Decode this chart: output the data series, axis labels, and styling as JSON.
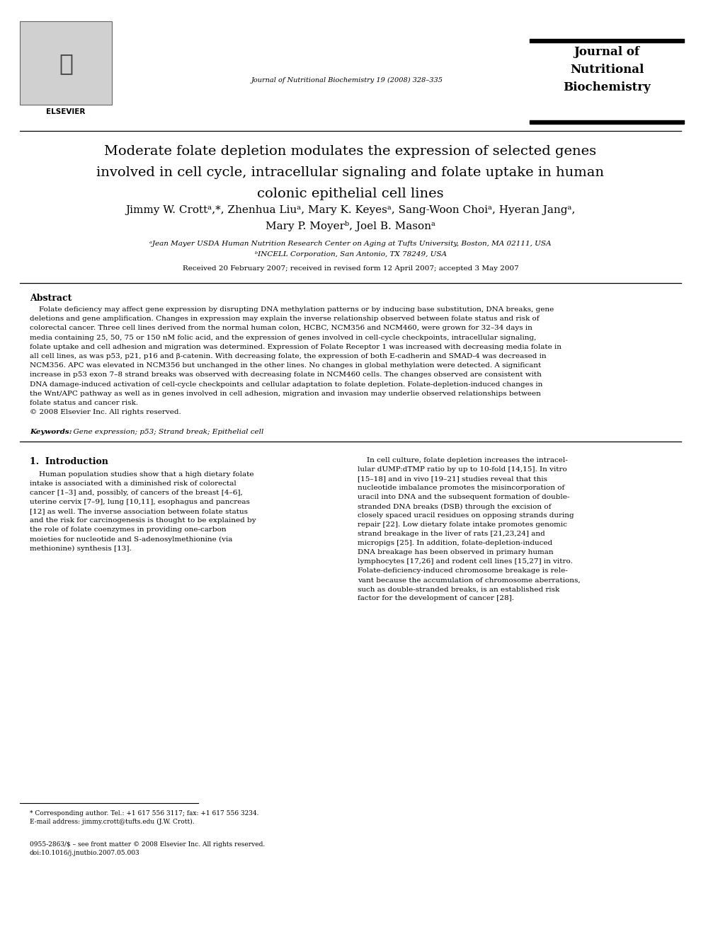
{
  "bg_color": "#ffffff",
  "journal_name": "Journal of Nutritional Biochemistry 19 (2008) 328–335",
  "journal_box_title_line1": "Journal of",
  "journal_box_title_line2": "Nutritional",
  "journal_box_title_line3": "Biochemistry",
  "article_title_line1": "Moderate folate depletion modulates the expression of selected genes",
  "article_title_line2": "involved in cell cycle, intracellular signaling and folate uptake in human",
  "article_title_line3": "colonic epithelial cell lines",
  "authors_line1": "Jimmy W. Crottᵃ,*, Zhenhua Liuᵃ, Mary K. Keyesᵃ, Sang-Woon Choiᵃ, Hyeran Jangᵃ,",
  "authors_line2": "Mary P. Moyerᵇ, Joel B. Masonᵃ",
  "affil_a": "ᵃJean Mayer USDA Human Nutrition Research Center on Aging at Tufts University, Boston, MA 02111, USA",
  "affil_b": "ᵇINCELL Corporation, San Antonio, TX 78249, USA",
  "received": "Received 20 February 2007; received in revised form 12 April 2007; accepted 3 May 2007",
  "abstract_header": "Abstract",
  "abstract_body": "Folate deficiency may affect gene expression by disrupting DNA methylation patterns or by inducing base substitution, DNA breaks, gene\ndeletions and gene amplification. Changes in expression may explain the inverse relationship observed between folate status and risk of\ncolorectal cancer. Three cell lines derived from the normal human colon, HCBC, NCM356 and NCM460, were grown for 32–34 days in\nmedia containing 25, 50, 75 or 150 nM folic acid, and the expression of genes involved in cell-cycle checkpoints, intracellular signaling,\nfolate uptake and cell adhesion and migration was determined. Expression of Folate Receptor 1 was increased with decreasing media folate in\nall cell lines, as was p53, p21, p16 and β-catenin. With decreasing folate, the expression of both E-cadherin and SMAD-4 was decreased in\nNCM356. APC was elevated in NCM356 but unchanged in the other lines. No changes in global methylation were detected. A significant\nincrease in p53 exon 7–8 strand breaks was observed with decreasing folate in NCM460 cells. The changes observed are consistent with\nDNA damage-induced activation of cell-cycle checkpoints and cellular adaptation to folate depletion. Folate-depletion-induced changes in\nthe Wnt/APC pathway as well as in genes involved in cell adhesion, migration and invasion may underlie observed relationships between\nfolate status and cancer risk.\n© 2008 Elsevier Inc. All rights reserved.",
  "keywords_label": "Keywords:",
  "keywords_text": "  Gene expression; p53; Strand break; Epithelial cell",
  "intro_header": "1.  Introduction",
  "intro_left_lines": [
    "    Human population studies show that a high dietary folate",
    "intake is associated with a diminished risk of colorectal",
    "cancer [1–3] and, possibly, of cancers of the breast [4–6],",
    "uterine cervix [7–9], lung [10,11], esophagus and pancreas",
    "[12] as well. The inverse association between folate status",
    "and the risk for carcinogenesis is thought to be explained by",
    "the role of folate coenzymes in providing one-carbon",
    "moieties for nucleotide and S-adenosylmethionine (via",
    "methionine) synthesis [13]."
  ],
  "intro_right_lines": [
    "    In cell culture, folate depletion increases the intracel-",
    "lular dUMP:dTMP ratio by up to 10-fold [14,15]. In vitro",
    "[15–18] and in vivo [19–21] studies reveal that this",
    "nucleotide imbalance promotes the misincorporation of",
    "uracil into DNA and the subsequent formation of double-",
    "stranded DNA breaks (DSB) through the excision of",
    "closely spaced uracil residues on opposing strands during",
    "repair [22]. Low dietary folate intake promotes genomic",
    "strand breakage in the liver of rats [21,23,24] and",
    "micropigs [25]. In addition, folate-depletion-induced",
    "DNA breakage has been observed in primary human",
    "lymphocytes [17,26] and rodent cell lines [15,27] in vitro.",
    "Folate-deficiency-induced chromosome breakage is rele-",
    "vant because the accumulation of chromosome aberrations,",
    "such as double-stranded breaks, is an established risk",
    "factor for the development of cancer [28]."
  ],
  "footnote_star": "* Corresponding author. Tel.: +1 617 556 3117; fax: +1 617 556 3234.",
  "footnote_email": "E-mail address: jimmy.crott@tufts.edu (J.W. Crott).",
  "footnote_issn": "0955-2863/$ – see front matter © 2008 Elsevier Inc. All rights reserved.",
  "footnote_doi": "doi:10.1016/j.jnutbio.2007.05.003"
}
